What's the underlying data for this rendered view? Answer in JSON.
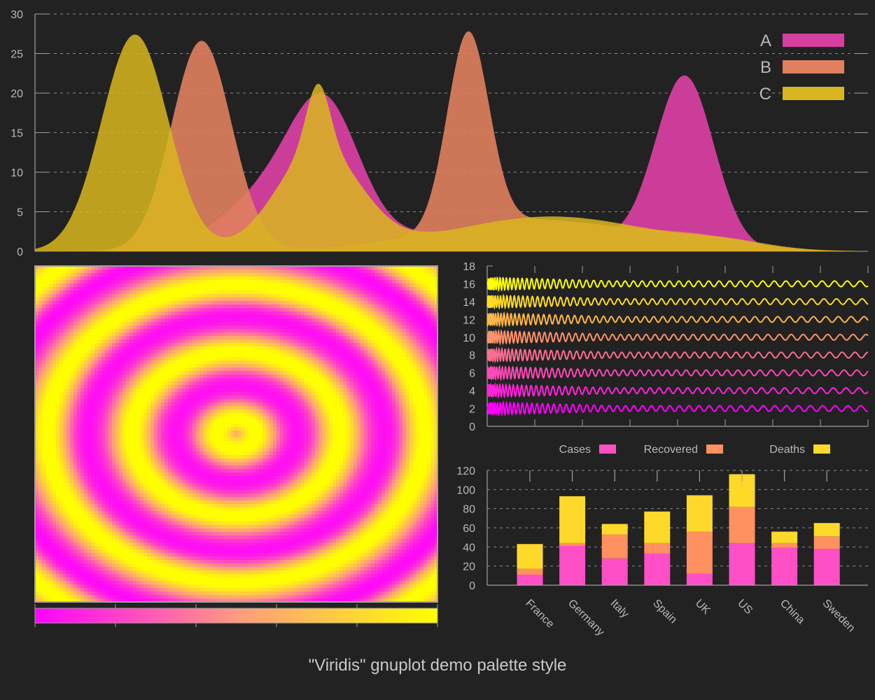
{
  "caption": "\"Viridis\" gnuplot demo palette style",
  "colors": {
    "background": "#222222",
    "axis": "#a0a0a0",
    "text": "#b8b8b8",
    "A": "#d63fa0",
    "B": "#e0805e",
    "C": "#d9b61f",
    "cases": "#ff4fc6",
    "recovered": "#ff9060",
    "deaths": "#ffd92a",
    "palette_low": "#ff00ff",
    "palette_mid": "#ff9a80",
    "palette_high": "#ffff00"
  },
  "chart_data": [
    {
      "type": "area",
      "title": "",
      "ylim": [
        0,
        30
      ],
      "xlim": [
        0,
        1
      ],
      "y_ticks": [
        "0",
        "5",
        "10",
        "15",
        "20",
        "25",
        "30"
      ],
      "legend": "top-right",
      "series": [
        {
          "name": "A",
          "peaks": [
            {
              "x": 0.3,
              "height": 8.6,
              "width": 0.065
            },
            {
              "x": 0.35,
              "height": 13.0,
              "width": 0.04
            },
            {
              "x": 0.53,
              "height": 2.4,
              "width": 0.09
            },
            {
              "x": 0.78,
              "height": 21.6,
              "width": 0.035
            },
            {
              "x": 0.66,
              "height": 1.2,
              "width": 0.1
            }
          ]
        },
        {
          "name": "B",
          "peaks": [
            {
              "x": 0.2,
              "height": 26.6,
              "width": 0.036
            },
            {
              "x": 0.52,
              "height": 24.6,
              "width": 0.025
            },
            {
              "x": 0.6,
              "height": 4.0,
              "width": 0.12
            },
            {
              "x": 0.8,
              "height": 1.2,
              "width": 0.06
            }
          ]
        },
        {
          "name": "C",
          "peaks": [
            {
              "x": 0.12,
              "height": 27.4,
              "width": 0.04
            },
            {
              "x": 0.34,
              "height": 12.9,
              "width": 0.05
            },
            {
              "x": 0.34,
              "height": 8.0,
              "width": 0.014
            },
            {
              "x": 0.62,
              "height": 4.4,
              "width": 0.12
            },
            {
              "x": 0.83,
              "height": 0.8,
              "width": 0.05
            }
          ]
        }
      ]
    },
    {
      "type": "heatmap",
      "title": "",
      "function": "sin(sqrt(x^2+y^2)) style ripple",
      "colorbar": "bottom"
    },
    {
      "type": "line",
      "title": "",
      "ylim": [
        0,
        18
      ],
      "y_ticks": [
        "0",
        "2",
        "4",
        "6",
        "8",
        "10",
        "12",
        "14",
        "16",
        "18"
      ],
      "x_tick_count": 9,
      "series_offsets": [
        2,
        4,
        6,
        8,
        10,
        12,
        14,
        16
      ],
      "amplitude": 0.45
    },
    {
      "type": "bar",
      "stacked": true,
      "title": "",
      "ylim": [
        0,
        120
      ],
      "y_ticks": [
        "0",
        "20",
        "40",
        "60",
        "80",
        "100",
        "120"
      ],
      "categories": [
        "France",
        "Germany",
        "Italy",
        "Spain",
        "UK",
        "US",
        "China",
        "Sweden"
      ],
      "legend": "top",
      "series": [
        {
          "name": "Cases",
          "values": [
            11,
            41,
            28,
            33,
            12,
            44,
            39,
            38
          ]
        },
        {
          "name": "Recovered",
          "values": [
            6,
            3,
            25,
            11,
            44,
            38,
            5,
            13
          ]
        },
        {
          "name": "Deaths",
          "values": [
            26,
            49,
            11,
            33,
            38,
            34,
            12,
            14
          ]
        }
      ]
    }
  ]
}
